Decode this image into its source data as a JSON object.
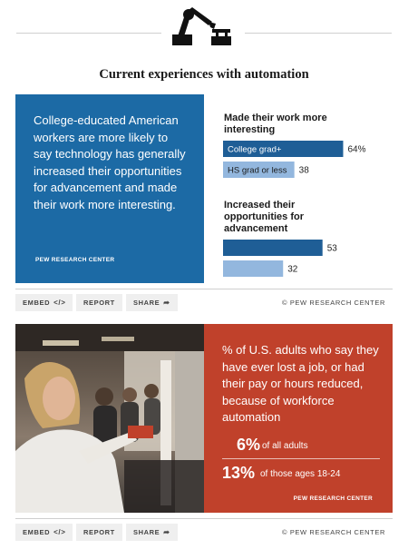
{
  "header": {
    "icon": "robot-arm-icon"
  },
  "title": "Current experiences with automation",
  "top_card": {
    "quote": "College-educated American workers are more likely to say technology has generally increased their opportunities for advancement and made their work more interesting.",
    "credit": "PEW RESEARCH CENTER"
  },
  "chart_data": {
    "type": "bar",
    "orientation": "horizontal",
    "groups": [
      {
        "label": "Made their work more interesting",
        "bars": [
          {
            "category": "College grad+",
            "value": 64
          },
          {
            "category": "HS grad or less",
            "value": 38
          }
        ]
      },
      {
        "label": "Increased their opportunities for advancement",
        "bars": [
          {
            "category": "College grad+",
            "value": 53
          },
          {
            "category": "HS grad or less",
            "value": 32
          }
        ]
      }
    ],
    "value_suffix_first": "%",
    "colors": {
      "College grad+": "#1f5e96",
      "HS grad or less": "#93b7de"
    },
    "xlim": [
      0,
      100
    ],
    "grid": false
  },
  "actions": {
    "embed": "EMBED",
    "embed_glyph": "</>",
    "report": "REPORT",
    "share": "SHARE",
    "share_glyph": "➦",
    "credit": "© PEW RESEARCH CENTER"
  },
  "bottom_card": {
    "text": "% of U.S. adults who say they have ever lost a job, or had their pay or hours reduced, because of workforce automation",
    "stats": [
      {
        "value": "6%",
        "label": "of all adults"
      },
      {
        "value": "13%",
        "label": "of those ages 18-24"
      }
    ],
    "credit": "PEW RESEARCH CENTER"
  },
  "colors": {
    "blue_panel": "#1c6aa5",
    "red_panel": "#c0412b"
  }
}
